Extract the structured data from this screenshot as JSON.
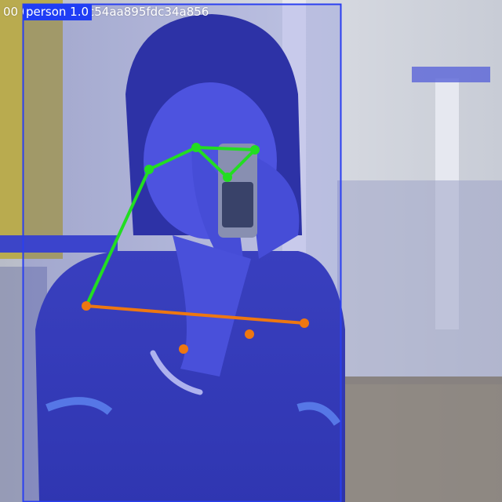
{
  "image": {
    "filename_overlay": "00 0_jpg.rf.af7c54aa895fdc34a856",
    "detection": {
      "class": "person",
      "confidence": "1.0",
      "label": "person 1.0"
    },
    "colors": {
      "box": "#2a3ff0",
      "upper_skeleton": "#22dd22",
      "lower_skeleton": "#ee7711",
      "keypoint_green": "#22dd22",
      "keypoint_orange": "#ee7711",
      "tint": "#3a44dd"
    }
  }
}
